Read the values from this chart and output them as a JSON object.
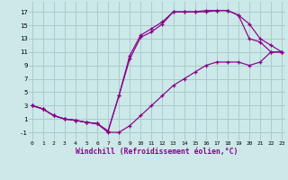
{
  "bg_color": "#cce8e8",
  "grid_color": "#aacccc",
  "line_color": "#880088",
  "xlabel": "Windchill (Refroidissement éolien,°C)",
  "xlabel_fontsize": 5.8,
  "ytick_labels": [
    "-1",
    "1",
    "3",
    "5",
    "7",
    "9",
    "11",
    "13",
    "15",
    "17"
  ],
  "ytick_values": [
    -1,
    1,
    3,
    5,
    7,
    9,
    11,
    13,
    15,
    17
  ],
  "xtick_values": [
    0,
    1,
    2,
    3,
    4,
    5,
    6,
    7,
    8,
    9,
    10,
    11,
    12,
    13,
    14,
    15,
    16,
    17,
    18,
    19,
    20,
    21,
    22,
    23
  ],
  "xlim": [
    -0.3,
    23.3
  ],
  "ylim": [
    -2.2,
    18.5
  ],
  "line1_x": [
    0,
    1,
    2,
    3,
    4,
    5,
    6,
    7,
    8,
    9,
    10,
    11,
    12,
    13,
    14,
    15,
    16,
    17,
    18,
    19,
    20,
    21,
    22,
    23
  ],
  "line1_y": [
    3.0,
    2.5,
    1.5,
    1.0,
    0.8,
    0.5,
    0.3,
    -0.8,
    4.5,
    10.0,
    13.2,
    14.0,
    15.2,
    17.0,
    17.0,
    17.0,
    17.0,
    17.2,
    17.2,
    16.5,
    13.0,
    12.5,
    11.0,
    11.0
  ],
  "line2_x": [
    0,
    1,
    2,
    3,
    4,
    5,
    6,
    7,
    8,
    9,
    10,
    11,
    12,
    13,
    14,
    15,
    16,
    17,
    18,
    19,
    20,
    21,
    22,
    23
  ],
  "line2_y": [
    3.0,
    2.5,
    1.5,
    1.0,
    0.8,
    0.5,
    0.3,
    -0.8,
    4.5,
    10.5,
    13.5,
    14.5,
    15.5,
    17.0,
    17.0,
    17.0,
    17.2,
    17.2,
    17.2,
    16.5,
    15.2,
    13.0,
    12.0,
    11.0
  ],
  "line3_x": [
    0,
    1,
    2,
    3,
    4,
    5,
    6,
    7,
    8,
    9,
    10,
    11,
    12,
    13,
    14,
    15,
    16,
    17,
    18,
    19,
    20,
    21,
    22,
    23
  ],
  "line3_y": [
    3.0,
    2.5,
    1.5,
    1.0,
    0.8,
    0.5,
    0.3,
    -1.0,
    -1.0,
    0.0,
    1.5,
    3.0,
    4.5,
    6.0,
    7.0,
    8.0,
    9.0,
    9.5,
    9.5,
    9.5,
    9.0,
    9.5,
    11.0,
    11.0
  ]
}
